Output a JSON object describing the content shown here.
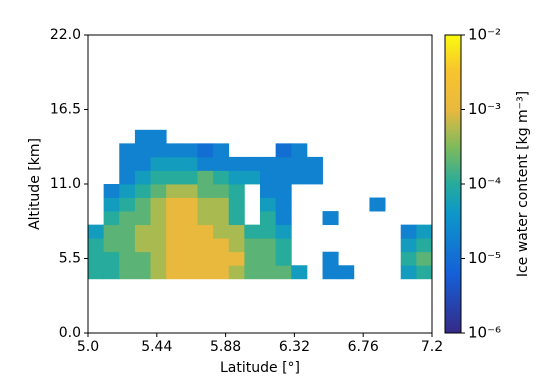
{
  "chart_data": {
    "type": "heatmap",
    "xlabel": "Latitude [°]",
    "ylabel": "Altitude [km]",
    "colorbar_label": "Ice water content [kg m⁻³]",
    "xlim": [
      5.0,
      7.2
    ],
    "ylim": [
      0.0,
      22.0
    ],
    "xticks": [
      {
        "value": 5.0,
        "label": "5.0"
      },
      5.44,
      5.88,
      6.32,
      6.76,
      7.2
    ],
    "yticks": [
      {
        "value": 0.0,
        "label": "0.0"
      },
      5.5,
      {
        "value": 11.0,
        "label": "11.0"
      },
      16.5,
      {
        "value": 22.0,
        "label": "22.0"
      }
    ],
    "clim": [
      1e-06,
      0.01
    ],
    "color_log": true,
    "cticks": [
      {
        "value": 1e-06,
        "label": "10⁻⁶"
      },
      {
        "value": 1e-05,
        "label": "10⁻⁵"
      },
      {
        "value": 0.0001,
        "label": "10⁻⁴"
      },
      {
        "value": 0.001,
        "label": "10⁻³"
      },
      {
        "value": 0.01,
        "label": "10⁻²"
      }
    ],
    "x_bins": [
      5.0,
      5.1,
      5.2,
      5.3,
      5.4,
      5.5,
      5.6,
      5.7,
      5.8,
      5.9,
      6.0,
      6.1,
      6.2,
      6.3,
      6.4,
      6.5,
      6.6,
      6.7,
      6.8,
      6.9,
      7.0,
      7.1,
      7.2
    ],
    "y_bins": [
      4,
      5,
      6,
      7,
      8,
      9,
      10,
      11,
      12,
      13,
      14,
      15
    ],
    "z": [
      [
        0.0001,
        0.0001,
        0.0002,
        0.0002,
        0.0005,
        0.001,
        0.001,
        0.001,
        0.001,
        0.0005,
        0.0002,
        0.0002,
        0.0002,
        5e-05,
        null,
        2e-05,
        2e-05,
        null,
        null,
        null,
        5e-05,
        0.0001
      ],
      [
        0.0001,
        0.0001,
        0.0002,
        0.0002,
        0.0005,
        0.001,
        0.001,
        0.001,
        0.001,
        0.001,
        0.0002,
        0.0002,
        0.0001,
        null,
        null,
        2e-05,
        null,
        null,
        null,
        null,
        0.0001,
        0.0002
      ],
      [
        0.0001,
        0.0002,
        0.0002,
        0.0005,
        0.0005,
        0.001,
        0.001,
        0.001,
        0.001,
        0.0005,
        0.0002,
        0.0002,
        0.0001,
        null,
        null,
        null,
        null,
        null,
        null,
        null,
        5e-05,
        0.0001
      ],
      [
        5e-05,
        0.0002,
        0.0002,
        0.0005,
        0.0005,
        0.001,
        0.001,
        0.001,
        0.0005,
        0.0005,
        0.0001,
        0.0001,
        5e-05,
        null,
        null,
        null,
        null,
        null,
        null,
        null,
        2e-05,
        5e-05
      ],
      [
        null,
        0.0001,
        0.0002,
        0.0002,
        0.0005,
        0.001,
        0.001,
        0.0005,
        0.0005,
        0.0001,
        null,
        0.0001,
        2e-05,
        null,
        null,
        2e-05,
        null,
        null,
        null,
        null,
        null,
        null
      ],
      [
        null,
        5e-05,
        0.0001,
        0.0002,
        0.0005,
        0.001,
        0.001,
        0.0005,
        0.0005,
        0.0001,
        null,
        5e-05,
        2e-05,
        null,
        null,
        null,
        null,
        null,
        2e-05,
        null,
        null,
        null
      ],
      [
        null,
        2e-05,
        5e-05,
        0.0001,
        0.0002,
        0.0005,
        0.0005,
        0.0002,
        0.0002,
        0.0001,
        null,
        2e-05,
        2e-05,
        null,
        null,
        null,
        null,
        null,
        null,
        null,
        null,
        null
      ],
      [
        null,
        null,
        2e-05,
        5e-05,
        0.0001,
        0.0001,
        0.0001,
        0.0002,
        0.0001,
        5e-05,
        5e-05,
        2e-05,
        2e-05,
        2e-05,
        2e-05,
        null,
        null,
        null,
        null,
        null,
        null,
        null
      ],
      [
        null,
        null,
        2e-05,
        2e-05,
        5e-05,
        5e-05,
        5e-05,
        2e-05,
        2e-05,
        2e-05,
        2e-05,
        2e-05,
        2e-05,
        2e-05,
        2e-05,
        null,
        null,
        null,
        null,
        null,
        null,
        null
      ],
      [
        null,
        null,
        2e-05,
        2e-05,
        2e-05,
        2e-05,
        2e-05,
        1e-05,
        2e-05,
        null,
        null,
        null,
        1e-05,
        2e-05,
        null,
        null,
        null,
        null,
        null,
        null,
        null,
        null
      ],
      [
        null,
        null,
        null,
        2e-05,
        2e-05,
        null,
        null,
        null,
        null,
        null,
        null,
        null,
        null,
        null,
        null,
        null,
        null,
        null,
        null,
        null,
        null,
        null
      ]
    ]
  }
}
